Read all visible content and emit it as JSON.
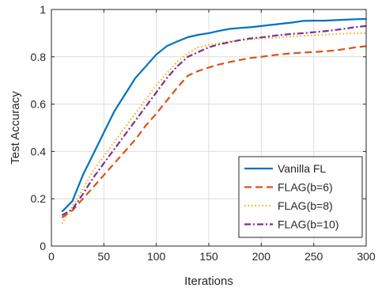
{
  "chart_data": {
    "type": "line",
    "title": "",
    "xlabel": "Iterations",
    "ylabel": "Test Accuracy",
    "xlim": [
      0,
      300
    ],
    "ylim": [
      0,
      1
    ],
    "xticks": [
      0,
      50,
      100,
      150,
      200,
      250,
      300
    ],
    "yticks": [
      0,
      0.2,
      0.4,
      0.6,
      0.8,
      1
    ],
    "xtick_labels": [
      "0",
      "50",
      "100",
      "150",
      "200",
      "250",
      "300"
    ],
    "ytick_labels": [
      "0",
      "0.2",
      "0.4",
      "0.6",
      "0.8",
      "1"
    ],
    "grid": true,
    "legend_position": "bottom-right",
    "x": [
      10,
      20,
      30,
      40,
      50,
      60,
      70,
      80,
      90,
      100,
      110,
      120,
      130,
      140,
      150,
      160,
      170,
      180,
      190,
      200,
      210,
      220,
      230,
      240,
      250,
      260,
      270,
      280,
      290,
      300
    ],
    "series": [
      {
        "name": "Vanilla FL",
        "color": "#0072BD",
        "dash": "solid",
        "values": [
          0.145,
          0.19,
          0.3,
          0.39,
          0.48,
          0.57,
          0.64,
          0.71,
          0.76,
          0.81,
          0.845,
          0.865,
          0.883,
          0.893,
          0.9,
          0.91,
          0.918,
          0.922,
          0.925,
          0.93,
          0.935,
          0.94,
          0.945,
          0.952,
          0.953,
          0.953,
          0.955,
          0.957,
          0.959,
          0.96
        ]
      },
      {
        "name": "FLAG(b=6)",
        "color": "#D95319",
        "dash": "dashed",
        "values": [
          0.12,
          0.15,
          0.2,
          0.25,
          0.3,
          0.35,
          0.4,
          0.45,
          0.51,
          0.56,
          0.615,
          0.67,
          0.72,
          0.74,
          0.755,
          0.768,
          0.778,
          0.787,
          0.795,
          0.8,
          0.806,
          0.811,
          0.815,
          0.818,
          0.82,
          0.823,
          0.827,
          0.833,
          0.84,
          0.845
        ]
      },
      {
        "name": "FLAG(b=8)",
        "color": "#EDB120",
        "dash": "dotted",
        "values": [
          0.095,
          0.17,
          0.24,
          0.32,
          0.38,
          0.44,
          0.5,
          0.56,
          0.62,
          0.68,
          0.73,
          0.78,
          0.815,
          0.84,
          0.85,
          0.858,
          0.865,
          0.87,
          0.874,
          0.878,
          0.88,
          0.883,
          0.886,
          0.889,
          0.891,
          0.893,
          0.896,
          0.898,
          0.9,
          0.9
        ]
      },
      {
        "name": "FLAG(b=10)",
        "color": "#7E2F8E",
        "dash": "dashdot",
        "values": [
          0.13,
          0.155,
          0.22,
          0.29,
          0.35,
          0.41,
          0.47,
          0.53,
          0.59,
          0.65,
          0.71,
          0.76,
          0.8,
          0.82,
          0.84,
          0.853,
          0.862,
          0.871,
          0.878,
          0.882,
          0.888,
          0.893,
          0.897,
          0.9,
          0.904,
          0.908,
          0.913,
          0.919,
          0.926,
          0.93
        ]
      }
    ]
  }
}
